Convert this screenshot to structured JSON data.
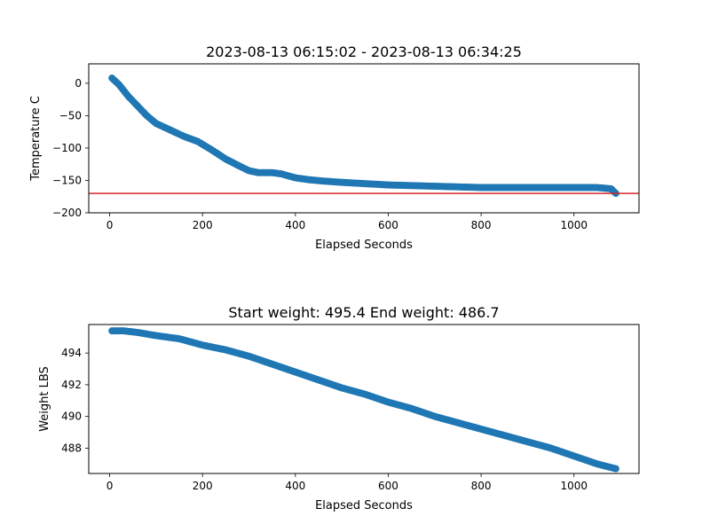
{
  "chart_data": [
    {
      "type": "scatter",
      "title": "2023-08-13 06:15:02 - 2023-08-13 06:34:25",
      "xlabel": "Elapsed Seconds",
      "ylabel": "Temperature C",
      "xlim": [
        -45,
        1140
      ],
      "ylim": [
        -200,
        30
      ],
      "xticks": [
        0,
        200,
        400,
        600,
        800,
        1000
      ],
      "yticks": [
        0,
        -50,
        -100,
        -150,
        -200
      ],
      "xtick_labels": [
        "0",
        "200",
        "400",
        "600",
        "800",
        "1000"
      ],
      "ytick_labels": [
        "0",
        "−50",
        "−100",
        "−150",
        "−200"
      ],
      "marker_color": "#1f77b4",
      "reference_line": {
        "orientation": "horizontal",
        "y": -170,
        "color": "#d62728"
      },
      "x": [
        5,
        20,
        40,
        60,
        80,
        100,
        130,
        160,
        190,
        220,
        250,
        280,
        300,
        320,
        350,
        370,
        400,
        430,
        460,
        500,
        550,
        600,
        650,
        700,
        750,
        800,
        850,
        900,
        950,
        1000,
        1050,
        1080,
        1090
      ],
      "y": [
        8,
        -2,
        -20,
        -35,
        -50,
        -62,
        -72,
        -82,
        -90,
        -103,
        -117,
        -128,
        -135,
        -138,
        -138,
        -140,
        -146,
        -149,
        -151,
        -153,
        -155,
        -157,
        -158,
        -159,
        -160,
        -161,
        -161,
        -161,
        -161,
        -161,
        -161,
        -163,
        -170
      ]
    },
    {
      "type": "scatter",
      "title": "Start weight: 495.4 End weight: 486.7",
      "xlabel": "Elapsed Seconds",
      "ylabel": "Weight LBS",
      "xlim": [
        -45,
        1140
      ],
      "ylim": [
        486.4,
        495.8
      ],
      "xticks": [
        0,
        200,
        400,
        600,
        800,
        1000
      ],
      "yticks": [
        494,
        492,
        490,
        488
      ],
      "xtick_labels": [
        "0",
        "200",
        "400",
        "600",
        "800",
        "1000"
      ],
      "ytick_labels": [
        "494",
        "492",
        "490",
        "488"
      ],
      "marker_color": "#1f77b4",
      "x": [
        5,
        30,
        60,
        100,
        150,
        200,
        250,
        300,
        350,
        400,
        450,
        500,
        550,
        600,
        650,
        700,
        750,
        800,
        850,
        900,
        950,
        1000,
        1050,
        1090
      ],
      "y": [
        495.4,
        495.4,
        495.3,
        495.1,
        494.9,
        494.5,
        494.2,
        493.8,
        493.3,
        492.8,
        492.3,
        491.8,
        491.4,
        490.9,
        490.5,
        490.0,
        489.6,
        489.2,
        488.8,
        488.4,
        488.0,
        487.5,
        487.0,
        486.7
      ]
    }
  ]
}
